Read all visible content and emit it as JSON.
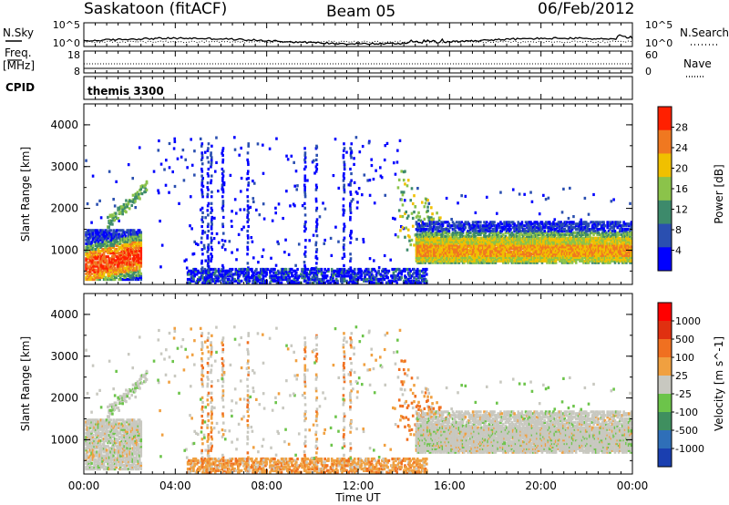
{
  "header": {
    "station": "Saskatoon (fitACF)",
    "beam": "Beam 05",
    "date": "06/Feb/2012"
  },
  "side_labels": {
    "nsky": "N.Sky",
    "nsearch": "N.Search",
    "freq": "Freq.",
    "freq_unit": "[MHz]",
    "nave": "Nave",
    "cpid": "CPID",
    "cpid_value": "themis 3300"
  },
  "strip_ticks": {
    "noise_top_left": "10^5",
    "noise_bottom_left": "10^0",
    "noise_top_right": "10^5",
    "noise_bottom_right": "10^0",
    "freq_top": "18",
    "freq_bottom": "8",
    "nave_top": "60",
    "nave_bottom": "0"
  },
  "chart_data": [
    {
      "type": "heatmap",
      "name": "power",
      "ylabel": "Slant Range [km]",
      "colorbar_label": "Power [dB]",
      "colorbar_ticks": [
        "28",
        "24",
        "20",
        "16",
        "12",
        "8",
        "4"
      ],
      "colors": [
        "#0000ff",
        "#2a4fb0",
        "#3d8a6b",
        "#8bc34a",
        "#f0c000",
        "#f07820",
        "#ff2000"
      ],
      "ylim": [
        180,
        4500
      ],
      "y_ticks": [
        "4000",
        "3000",
        "2000",
        "1000"
      ]
    },
    {
      "type": "heatmap",
      "name": "velocity",
      "ylabel": "Slant Range [km]",
      "colorbar_label": "Velocity [m s^-1]",
      "colorbar_ticks": [
        "1000",
        "500",
        "100",
        "25",
        "-25",
        "-100",
        "-500",
        "-1000"
      ],
      "colors": [
        "#1a3fb0",
        "#2f6fb8",
        "#3f8f5f",
        "#6cc44a",
        "#c8c8c0",
        "#f0a040",
        "#f07020",
        "#e03010",
        "#ff0000"
      ],
      "ylim": [
        180,
        4500
      ],
      "y_ticks": [
        "4000",
        "3000",
        "2000",
        "1000"
      ]
    }
  ],
  "x_axis": {
    "label": "Time UT",
    "ticks": [
      "00:00",
      "04:00",
      "08:00",
      "12:00",
      "16:00",
      "20:00",
      "00:00"
    ]
  }
}
